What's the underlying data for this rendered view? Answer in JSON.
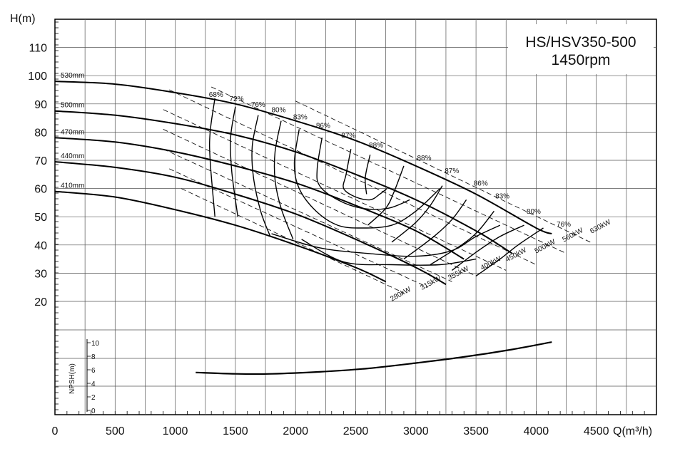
{
  "chart_data": {
    "type": "line",
    "title": "HS/HSV350-500",
    "subtitle": "1450rpm",
    "ylabel": "H(m)",
    "xlabel": "Q(m³/h)",
    "xlim": [
      0,
      5000
    ],
    "ylim": [
      10,
      120
    ],
    "x_ticks": [
      "0",
      "500",
      "1000",
      "1500",
      "2000",
      "2500",
      "3000",
      "3500",
      "4000",
      "4500"
    ],
    "y_ticks": [
      "20",
      "30",
      "40",
      "50",
      "60",
      "70",
      "80",
      "90",
      "100",
      "110"
    ],
    "grid": true,
    "head_curves": [
      {
        "name": "530mm",
        "points": [
          [
            0,
            98
          ],
          [
            500,
            97
          ],
          [
            1000,
            94
          ],
          [
            1500,
            90
          ],
          [
            2000,
            84
          ],
          [
            2500,
            77
          ],
          [
            3000,
            68
          ],
          [
            3500,
            58
          ],
          [
            4000,
            46
          ],
          [
            4130,
            44
          ]
        ]
      },
      {
        "name": "500mm",
        "points": [
          [
            0,
            87.5
          ],
          [
            500,
            86
          ],
          [
            1000,
            83
          ],
          [
            1500,
            79
          ],
          [
            2000,
            73
          ],
          [
            2500,
            65
          ],
          [
            3000,
            56
          ],
          [
            3500,
            45
          ],
          [
            3800,
            37
          ]
        ]
      },
      {
        "name": "470mm",
        "points": [
          [
            0,
            78
          ],
          [
            500,
            76.5
          ],
          [
            1000,
            73
          ],
          [
            1500,
            68
          ],
          [
            2000,
            62
          ],
          [
            2500,
            54
          ],
          [
            3000,
            45
          ],
          [
            3400,
            35
          ]
        ]
      },
      {
        "name": "440mm",
        "points": [
          [
            0,
            69.5
          ],
          [
            500,
            67.5
          ],
          [
            1000,
            64
          ],
          [
            1500,
            58
          ],
          [
            2000,
            51
          ],
          [
            2500,
            42
          ],
          [
            3000,
            32
          ],
          [
            3250,
            26
          ]
        ]
      },
      {
        "name": "410mm",
        "points": [
          [
            0,
            59
          ],
          [
            500,
            57
          ],
          [
            1000,
            52.5
          ],
          [
            1500,
            47
          ],
          [
            2000,
            40
          ],
          [
            2500,
            32
          ],
          [
            2750,
            27
          ]
        ]
      }
    ],
    "efficiency_labels": [
      "68%",
      "72%",
      "76%",
      "80%",
      "83%",
      "86%",
      "87%",
      "88%",
      "88%",
      "87%",
      "86%",
      "83%",
      "80%",
      "76%"
    ],
    "efficiency_curves": [
      {
        "name": "68%",
        "points": [
          [
            1330,
            92
          ],
          [
            1290,
            80
          ],
          [
            1290,
            70
          ],
          [
            1330,
            50
          ]
        ]
      },
      {
        "name": "72%",
        "points": [
          [
            1500,
            89
          ],
          [
            1460,
            78
          ],
          [
            1470,
            66
          ],
          [
            1520,
            50
          ]
        ]
      },
      {
        "name": "76%",
        "points": [
          [
            1690,
            86
          ],
          [
            1640,
            75
          ],
          [
            1650,
            64
          ],
          [
            1710,
            52
          ],
          [
            1790,
            43
          ]
        ]
      },
      {
        "name": "80%",
        "points": [
          [
            1880,
            84
          ],
          [
            1830,
            73
          ],
          [
            1830,
            63
          ],
          [
            1880,
            53
          ],
          [
            1980,
            42
          ]
        ]
      },
      {
        "name": "83%",
        "points": [
          [
            2030,
            81
          ],
          [
            1990,
            69
          ],
          [
            2030,
            60
          ],
          [
            2170,
            52
          ],
          [
            2350,
            47
          ],
          [
            2550,
            46
          ],
          [
            2800,
            47
          ],
          [
            3000,
            52
          ],
          [
            3200,
            60
          ]
        ]
      },
      {
        "name": "86%",
        "points": [
          [
            2220,
            78
          ],
          [
            2180,
            67
          ],
          [
            2200,
            61
          ],
          [
            2350,
            56
          ],
          [
            2550,
            53
          ],
          [
            2770,
            53
          ],
          [
            2950,
            56
          ]
        ]
      },
      {
        "name": "87%",
        "points": [
          [
            2460,
            74
          ],
          [
            2420,
            65
          ],
          [
            2400,
            60
          ],
          [
            2500,
            57
          ],
          [
            2620,
            56
          ],
          [
            2700,
            58
          ],
          [
            2760,
            60
          ]
        ]
      },
      {
        "name": "88%",
        "points": [
          [
            2620,
            72
          ],
          [
            2580,
            64
          ],
          [
            2590,
            58
          ]
        ]
      }
    ],
    "power_lines": [
      "280kW",
      "315kW",
      "355kW",
      "400kW",
      "450kW",
      "500kW",
      "560kW",
      "630kW"
    ],
    "npsh": {
      "ylabel": "NPSH(m)",
      "ticks": [
        "0",
        "2",
        "4",
        "6",
        "8",
        "10"
      ],
      "ylim": [
        0,
        10
      ],
      "points": [
        [
          1170,
          5.6
        ],
        [
          1500,
          5.4
        ],
        [
          1800,
          5.4
        ],
        [
          2200,
          5.7
        ],
        [
          2600,
          6.2
        ],
        [
          3000,
          7.0
        ],
        [
          3400,
          7.9
        ],
        [
          3800,
          9.0
        ],
        [
          4130,
          10.1
        ]
      ]
    }
  }
}
